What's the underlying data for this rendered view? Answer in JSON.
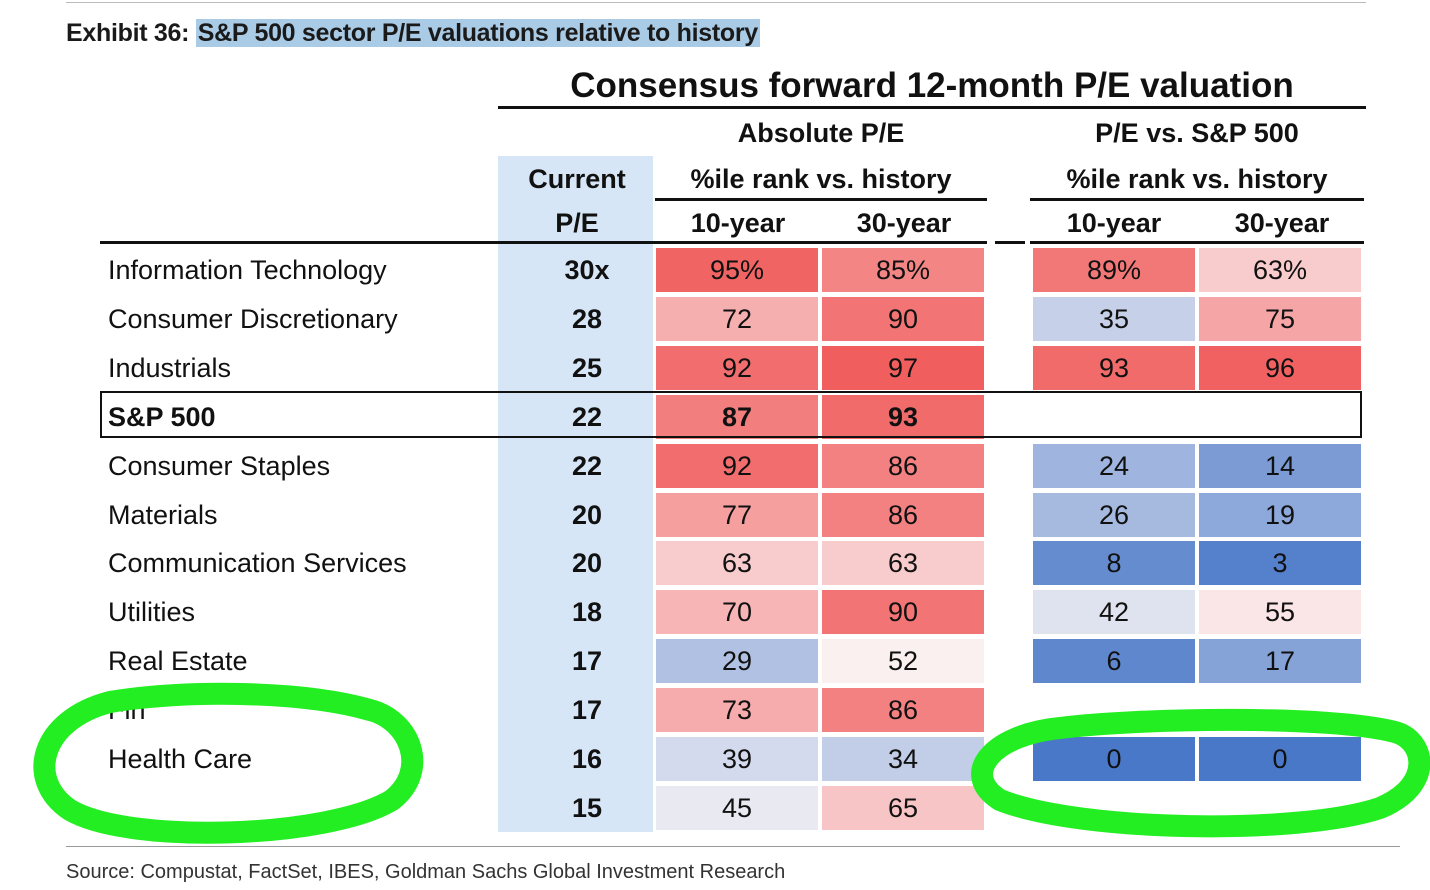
{
  "exhibit": {
    "prefix": "Exhibit 36:",
    "title": "S&P 500 sector P/E valuations relative to history",
    "highlight_color": "#a9cbe6"
  },
  "source": "Source: Compustat, FactSet, IBES, Goldman Sachs Global Investment Research",
  "chart_data": {
    "type": "table",
    "title": "Consensus forward 12-month P/E valuation",
    "current_pe_header": [
      "Current",
      "P/E"
    ],
    "groups": [
      {
        "title": "Absolute P/E",
        "subtitle": "%ile rank vs. history",
        "columns": [
          "10-year",
          "30-year"
        ]
      },
      {
        "title": "P/E vs. S&P 500",
        "subtitle": "%ile rank vs. history",
        "columns": [
          "10-year",
          "30-year"
        ]
      }
    ],
    "rows": [
      {
        "sector": "Information Technology",
        "pe": "30x",
        "abs10": "95%",
        "abs30": "85%",
        "rel10": "89%",
        "rel30": "63%"
      },
      {
        "sector": "Consumer Discretionary",
        "pe": "28",
        "abs10": "72",
        "abs30": "90",
        "rel10": "35",
        "rel30": "75"
      },
      {
        "sector": "Industrials",
        "pe": "25",
        "abs10": "92",
        "abs30": "97",
        "rel10": "93",
        "rel30": "96"
      },
      {
        "sector": "S&P 500",
        "pe": "22",
        "abs10": "87",
        "abs30": "93",
        "rel10": "",
        "rel30": "",
        "highlight": true
      },
      {
        "sector": "Consumer Staples",
        "pe": "22",
        "abs10": "92",
        "abs30": "86",
        "rel10": "24",
        "rel30": "14"
      },
      {
        "sector": "Materials",
        "pe": "20",
        "abs10": "77",
        "abs30": "86",
        "rel10": "26",
        "rel30": "19"
      },
      {
        "sector": "Communication Services",
        "pe": "20",
        "abs10": "63",
        "abs30": "63",
        "rel10": "8",
        "rel30": "3"
      },
      {
        "sector": "Utilities",
        "pe": "18",
        "abs10": "70",
        "abs30": "90",
        "rel10": "42",
        "rel30": "55"
      },
      {
        "sector": "Real Estate",
        "pe": "17",
        "abs10": "29",
        "abs30": "52",
        "rel10": "6",
        "rel30": "17"
      },
      {
        "sector": "Fin",
        "pe": "17",
        "abs10": "73",
        "abs30": "86",
        "rel10": "",
        "rel30": ""
      },
      {
        "sector": "Health Care",
        "pe": "16",
        "abs10": "39",
        "abs30": "34",
        "rel10": "0",
        "rel30": "0"
      },
      {
        "sector": "",
        "pe": "15",
        "abs10": "45",
        "abs30": "65",
        "rel10": "",
        "rel30": ""
      }
    ],
    "color_scale": {
      "low": "#4a78c8",
      "mid": "#fbf6f7",
      "high": "#f05454"
    }
  },
  "annotations": {
    "circle_color": "#22ee22"
  }
}
